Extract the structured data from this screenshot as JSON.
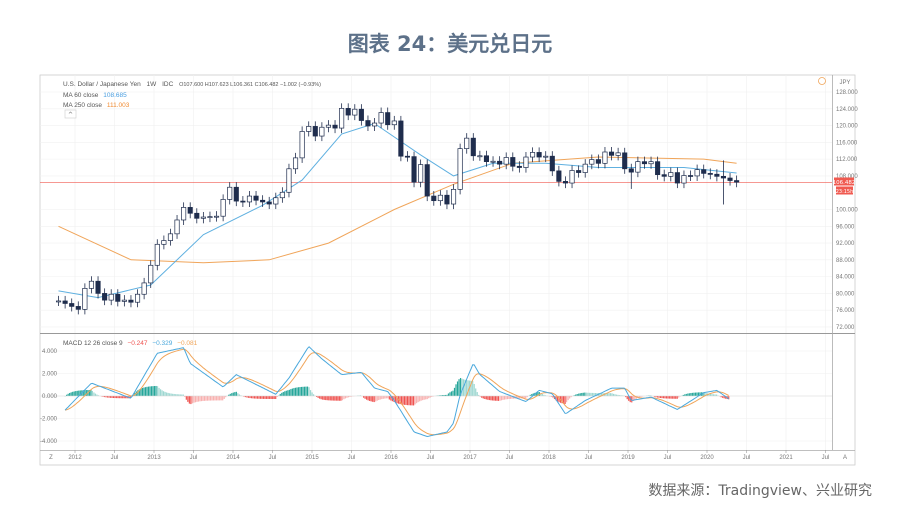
{
  "title": "图表 24：美元兑日元",
  "source": "数据来源：Tradingview、兴业研究",
  "legend": {
    "symbol": "U.S. Dollar / Japanese Yen",
    "interval": "1W",
    "exchange": "IDC",
    "ohlc": "O107.600 H107.623 L106.361 C106.482 −1.002 (−0.93%)",
    "ma60_label": "MA 60 close",
    "ma60_value": "108.685",
    "ma250_label": "MA 250 close",
    "ma250_value": "111.003",
    "macd_label": "MACD 12 26 close 9",
    "macd_hist_value": "−0.247",
    "macd_value": "−0.329",
    "macd_signal_value": "−0.081"
  },
  "price_axis": {
    "currency": "JPY",
    "last_price_label": "106.482",
    "countdown_label": "23:15h"
  },
  "colors": {
    "candle": "#1f2d4d",
    "ma60": "#5fb0e0",
    "ma250": "#f0a55a",
    "last_price": "#f05a50",
    "macd": "#4aa8dc",
    "signal": "#f0a55a",
    "hist_up": "#26a69a",
    "hist_down": "#ef5350"
  },
  "chart_data": [
    {
      "type": "candlestick",
      "ylim": [
        72,
        130
      ],
      "yticks": [
        "128.000",
        "124.000",
        "120.000",
        "116.000",
        "112.000",
        "108.000",
        "100.000",
        "96.000",
        "92.000",
        "88.000",
        "84.000",
        "80.000",
        "76.000",
        "72.000"
      ],
      "xticks": [
        "2012",
        "Jul",
        "2013",
        "Jul",
        "2014",
        "Jul",
        "2015",
        "Jul",
        "2016",
        "Jul",
        "2017",
        "Jul",
        "2018",
        "Jul",
        "2019",
        "Jul",
        "2020",
        "Jul",
        "2021",
        "Jul"
      ],
      "last_price": 106.482,
      "monthly_close": [
        [
          "2011-10",
          78.2
        ],
        [
          "2011-11",
          77.6
        ],
        [
          "2011-12",
          76.9
        ],
        [
          "2012-01",
          76.2
        ],
        [
          "2012-02",
          81.2
        ],
        [
          "2012-03",
          82.9
        ],
        [
          "2012-04",
          80.0
        ],
        [
          "2012-05",
          78.4
        ],
        [
          "2012-06",
          79.8
        ],
        [
          "2012-07",
          78.1
        ],
        [
          "2012-08",
          78.4
        ],
        [
          "2012-09",
          77.9
        ],
        [
          "2012-10",
          79.8
        ],
        [
          "2012-11",
          82.5
        ],
        [
          "2012-12",
          86.7
        ],
        [
          "2013-01",
          91.7
        ],
        [
          "2013-02",
          92.6
        ],
        [
          "2013-03",
          94.2
        ],
        [
          "2013-04",
          97.5
        ],
        [
          "2013-05",
          100.5
        ],
        [
          "2013-06",
          99.1
        ],
        [
          "2013-07",
          97.9
        ],
        [
          "2013-08",
          98.2
        ],
        [
          "2013-09",
          98.3
        ],
        [
          "2013-10",
          98.4
        ],
        [
          "2013-11",
          102.4
        ],
        [
          "2013-12",
          105.3
        ],
        [
          "2014-01",
          102.0
        ],
        [
          "2014-02",
          101.8
        ],
        [
          "2014-03",
          103.2
        ],
        [
          "2014-04",
          102.2
        ],
        [
          "2014-05",
          101.8
        ],
        [
          "2014-06",
          101.3
        ],
        [
          "2014-07",
          102.8
        ],
        [
          "2014-08",
          104.1
        ],
        [
          "2014-09",
          109.7
        ],
        [
          "2014-10",
          112.3
        ],
        [
          "2014-11",
          118.6
        ],
        [
          "2014-12",
          119.8
        ],
        [
          "2015-01",
          117.5
        ],
        [
          "2015-02",
          119.6
        ],
        [
          "2015-03",
          120.1
        ],
        [
          "2015-04",
          119.4
        ],
        [
          "2015-05",
          124.1
        ],
        [
          "2015-06",
          122.5
        ],
        [
          "2015-07",
          123.9
        ],
        [
          "2015-08",
          121.2
        ],
        [
          "2015-09",
          119.9
        ],
        [
          "2015-10",
          120.6
        ],
        [
          "2015-11",
          123.1
        ],
        [
          "2015-12",
          120.2
        ],
        [
          "2016-01",
          121.1
        ],
        [
          "2016-02",
          112.7
        ],
        [
          "2016-03",
          112.6
        ],
        [
          "2016-04",
          106.5
        ],
        [
          "2016-05",
          110.7
        ],
        [
          "2016-06",
          103.2
        ],
        [
          "2016-07",
          102.1
        ],
        [
          "2016-08",
          103.4
        ],
        [
          "2016-09",
          101.3
        ],
        [
          "2016-10",
          104.8
        ],
        [
          "2016-11",
          114.5
        ],
        [
          "2016-12",
          117.0
        ],
        [
          "2017-01",
          112.8
        ],
        [
          "2017-02",
          112.8
        ],
        [
          "2017-03",
          111.4
        ],
        [
          "2017-04",
          111.5
        ],
        [
          "2017-05",
          110.8
        ],
        [
          "2017-06",
          112.4
        ],
        [
          "2017-07",
          110.3
        ],
        [
          "2017-08",
          110.0
        ],
        [
          "2017-09",
          112.5
        ],
        [
          "2017-10",
          113.6
        ],
        [
          "2017-11",
          112.5
        ],
        [
          "2017-12",
          112.7
        ],
        [
          "2018-01",
          109.2
        ],
        [
          "2018-02",
          106.7
        ],
        [
          "2018-03",
          106.3
        ],
        [
          "2018-04",
          109.3
        ],
        [
          "2018-05",
          108.8
        ],
        [
          "2018-06",
          110.8
        ],
        [
          "2018-07",
          111.9
        ],
        [
          "2018-08",
          111.0
        ],
        [
          "2018-09",
          113.7
        ],
        [
          "2018-10",
          112.9
        ],
        [
          "2018-11",
          113.5
        ],
        [
          "2018-12",
          109.7
        ],
        [
          "2019-01",
          108.9
        ],
        [
          "2019-02",
          111.4
        ],
        [
          "2019-03",
          110.9
        ],
        [
          "2019-04",
          111.4
        ],
        [
          "2019-05",
          108.3
        ],
        [
          "2019-06",
          107.9
        ],
        [
          "2019-07",
          108.8
        ],
        [
          "2019-08",
          106.3
        ],
        [
          "2019-09",
          108.1
        ],
        [
          "2019-10",
          108.0
        ],
        [
          "2019-11",
          109.5
        ],
        [
          "2019-12",
          108.6
        ],
        [
          "2020-01",
          108.4
        ],
        [
          "2020-02",
          107.9
        ],
        [
          "2020-03",
          107.5
        ],
        [
          "2020-04",
          106.9
        ],
        [
          "2020-05",
          106.5
        ]
      ],
      "notable_lows": [
        [
          "2019-01",
          104.9
        ],
        [
          "2020-03",
          101.2
        ]
      ],
      "notable_highs": [
        [
          "2020-03",
          111.7
        ]
      ],
      "series": [
        {
          "name": "MA 60 close",
          "points": [
            [
              "2011-10",
              80.6
            ],
            [
              "2012-04",
              79.0
            ],
            [
              "2012-12",
              82.0
            ],
            [
              "2013-08",
              94.0
            ],
            [
              "2014-05",
              101.0
            ],
            [
              "2014-11",
              107.0
            ],
            [
              "2015-05",
              118.0
            ],
            [
              "2015-10",
              120.5
            ],
            [
              "2016-05",
              113.0
            ],
            [
              "2016-10",
              108.0
            ],
            [
              "2017-04",
              111.0
            ],
            [
              "2017-12",
              111.0
            ],
            [
              "2018-08",
              110.0
            ],
            [
              "2019-09",
              110.0
            ],
            [
              "2020-05",
              108.7
            ]
          ]
        },
        {
          "name": "MA 250 close",
          "points": [
            [
              "2011-10",
              96.0
            ],
            [
              "2012-09",
              88.0
            ],
            [
              "2013-08",
              87.3
            ],
            [
              "2014-06",
              88.0
            ],
            [
              "2015-03",
              92.0
            ],
            [
              "2016-01",
              100.0
            ],
            [
              "2016-10",
              106.0
            ],
            [
              "2017-07",
              111.0
            ],
            [
              "2018-08",
              112.5
            ],
            [
              "2019-12",
              112.0
            ],
            [
              "2020-05",
              111.0
            ]
          ]
        }
      ]
    },
    {
      "type": "line",
      "title": "MACD 12 26 close 9",
      "ylim": [
        -4.8,
        5
      ],
      "yticks": [
        "4.000",
        "2.000",
        "0.000",
        "-2.000",
        "-4.000"
      ],
      "series": [
        {
          "name": "MACD",
          "points": [
            [
              "2011-11",
              -1.25
            ],
            [
              "2012-03",
              1.15
            ],
            [
              "2012-09",
              -0.2
            ],
            [
              "2013-01",
              3.8
            ],
            [
              "2013-05",
              4.3
            ],
            [
              "2013-06",
              2.9
            ],
            [
              "2013-11",
              0.8
            ],
            [
              "2014-01",
              1.9
            ],
            [
              "2014-07",
              0.15
            ],
            [
              "2014-09",
              1.6
            ],
            [
              "2014-12",
              4.4
            ],
            [
              "2015-02",
              3.3
            ],
            [
              "2015-05",
              1.9
            ],
            [
              "2015-08",
              2.1
            ],
            [
              "2015-10",
              0.7
            ],
            [
              "2015-12",
              0.4
            ],
            [
              "2016-01",
              -0.4
            ],
            [
              "2016-04",
              -3.2
            ],
            [
              "2016-06",
              -3.6
            ],
            [
              "2016-09",
              -3.2
            ],
            [
              "2016-10",
              -2.4
            ],
            [
              "2016-11",
              0.1
            ],
            [
              "2017-01",
              2.9
            ],
            [
              "2017-02",
              1.9
            ],
            [
              "2017-05",
              0.4
            ],
            [
              "2017-09",
              -0.5
            ],
            [
              "2017-11",
              0.5
            ],
            [
              "2018-01",
              0.2
            ],
            [
              "2018-03",
              -1.6
            ],
            [
              "2018-06",
              -0.4
            ],
            [
              "2018-10",
              0.7
            ],
            [
              "2018-12",
              0.7
            ],
            [
              "2019-01",
              -0.4
            ],
            [
              "2019-04",
              -0.1
            ],
            [
              "2019-08",
              -1.2
            ],
            [
              "2019-12",
              0.3
            ],
            [
              "2020-02",
              0.5
            ],
            [
              "2020-04",
              -0.33
            ]
          ]
        }
      ]
    }
  ]
}
